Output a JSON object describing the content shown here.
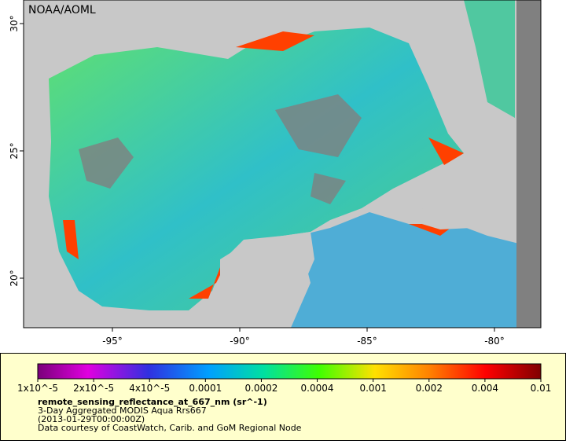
{
  "map": {
    "credit": "NOAA/AOML",
    "lon_labels": [
      "-95°",
      "-90°",
      "-85°",
      "-80°"
    ],
    "lat_labels": [
      "20°",
      "25°",
      "30°"
    ]
  },
  "colorbar": {
    "labels": [
      "1x10^-5",
      "2x10^-5",
      "4x10^-5",
      "0.0001",
      "0.0002",
      "0.0004",
      "0.001",
      "0.002",
      "0.004",
      "0.01"
    ]
  },
  "legend": {
    "variable": "remote_sensing_reflectance_at_667_nm (sr^-1)",
    "dataset": "3-Day Aggregated MODIS Aqua Rrs667",
    "time": "(2013-01-29T00:00:00Z)",
    "source": "Data courtesy of CoastWatch, Carib. and GoM Regional Node"
  }
}
